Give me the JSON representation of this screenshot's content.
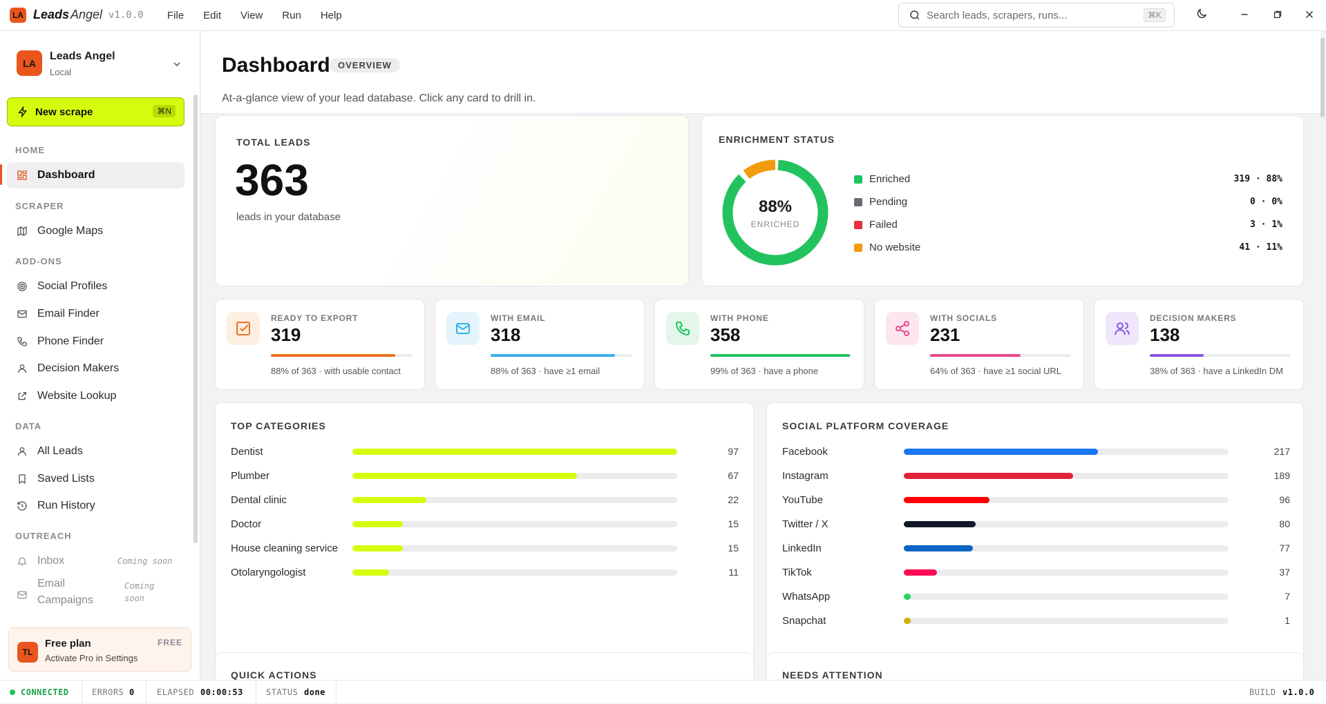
{
  "app": {
    "logo": "LA",
    "brand_bold": "Leads",
    "brand_rest": "Angel",
    "version": "v1.0.0"
  },
  "menu": [
    "File",
    "Edit",
    "View",
    "Run",
    "Help"
  ],
  "search": {
    "placeholder": "Search leads, scrapers, runs...",
    "shortcut": "⌘K"
  },
  "workspace": {
    "initials": "LA",
    "name": "Leads Angel",
    "sub": "Local"
  },
  "new_scrape": {
    "label": "New scrape",
    "shortcut": "⌘N"
  },
  "sidebar": {
    "home": "HOME",
    "scraper": "SCRAPER",
    "addons": "ADD-ONS",
    "data": "DATA",
    "outreach": "OUTREACH",
    "dashboard": "Dashboard",
    "google_maps": "Google Maps",
    "social_profiles": "Social Profiles",
    "email_finder": "Email Finder",
    "phone_finder": "Phone Finder",
    "decision_makers": "Decision Makers",
    "website_lookup": "Website Lookup",
    "all_leads": "All Leads",
    "saved_lists": "Saved Lists",
    "run_history": "Run History",
    "inbox": "Inbox",
    "inbox_soon": "Coming soon",
    "email_campaigns_1": "Email",
    "email_campaigns_2": "Campaigns",
    "ec_soon_1": "Coming",
    "ec_soon_2": "soon"
  },
  "plan": {
    "initials": "TL",
    "name": "Free plan",
    "sub": "Activate Pro in Settings",
    "badge": "FREE"
  },
  "header": {
    "title": "Dashboard",
    "badge": "OVERVIEW",
    "subtitle": "At-a-glance view of your lead database. Click any card to drill in."
  },
  "total": {
    "label": "TOTAL LEADS",
    "value": "363",
    "sub": "leads in your database"
  },
  "enrichment": {
    "label": "ENRICHMENT STATUS",
    "center": "88%",
    "center_sub": "ENRICHED",
    "items": [
      {
        "name": "Enriched",
        "value": "319 · 88%",
        "count": 319,
        "color": "#22c35e"
      },
      {
        "name": "Pending",
        "value": "0 · 0%",
        "count": 0,
        "color": "#6b6b74"
      },
      {
        "name": "Failed",
        "value": "3 · 1%",
        "count": 3,
        "color": "#e53040"
      },
      {
        "name": "No website",
        "value": "41 · 11%",
        "count": 41,
        "color": "#f29b0c"
      }
    ]
  },
  "stats": [
    {
      "label": "READY TO EXPORT",
      "value": "319",
      "sub": "88% of 363 · with usable contact",
      "pct": 0.88,
      "color": "#e8731d",
      "tint": "#fdeee2",
      "icon": "check-square-icon"
    },
    {
      "label": "WITH EMAIL",
      "value": "318",
      "sub": "88% of 363 · have ≥1 email",
      "pct": 0.88,
      "color": "#3ab0ea",
      "tint": "#e3f4fc",
      "icon": "mail-icon"
    },
    {
      "label": "WITH PHONE",
      "value": "358",
      "sub": "99% of 363 · have a phone",
      "pct": 0.99,
      "color": "#22c35e",
      "tint": "#e2f7ea",
      "icon": "phone-icon"
    },
    {
      "label": "WITH SOCIALS",
      "value": "231",
      "sub": "64% of 363 · have ≥1 social URL",
      "pct": 0.64,
      "color": "#e84a8a",
      "tint": "#fce6ef",
      "icon": "share-icon"
    },
    {
      "label": "DECISION MAKERS",
      "value": "138",
      "sub": "38% of 363 · have a LinkedIn DM",
      "pct": 0.38,
      "color": "#8a55e6",
      "tint": "#efe6fc",
      "icon": "users-icon"
    }
  ],
  "categories": {
    "label": "TOP CATEGORIES",
    "max": 97,
    "items": [
      {
        "name": "Dentist",
        "value": 97
      },
      {
        "name": "Plumber",
        "value": 67
      },
      {
        "name": "Dental clinic",
        "value": 22
      },
      {
        "name": "Doctor",
        "value": 15
      },
      {
        "name": "House cleaning service",
        "value": 15
      },
      {
        "name": "Otolaryngologist",
        "value": 11
      }
    ]
  },
  "social": {
    "label": "SOCIAL PLATFORM COVERAGE",
    "max": 363,
    "items": [
      {
        "name": "Facebook",
        "value": 217,
        "color": "#1877f2"
      },
      {
        "name": "Instagram",
        "value": 189,
        "color": "#e1243c"
      },
      {
        "name": "YouTube",
        "value": 96,
        "color": "#ff0000"
      },
      {
        "name": "Twitter / X",
        "value": 80,
        "color": "#111827"
      },
      {
        "name": "LinkedIn",
        "value": 77,
        "color": "#0a66c2"
      },
      {
        "name": "TikTok",
        "value": 37,
        "color": "#ff0a54"
      },
      {
        "name": "WhatsApp",
        "value": 7,
        "color": "#25d366"
      },
      {
        "name": "Snapchat",
        "value": 1,
        "color": "#d4b000"
      }
    ]
  },
  "quick_actions": "QUICK ACTIONS",
  "needs_attention": "NEEDS ATTENTION",
  "status": {
    "connected": "CONNECTED",
    "errors_label": "ERRORS",
    "errors": "0",
    "elapsed_label": "ELAPSED",
    "elapsed": "00:00:53",
    "status_label": "STATUS",
    "status": "done",
    "build_label": "BUILD",
    "build": "v1.0.0"
  },
  "colors": {
    "accent": "#e8561d",
    "lime": "#d4fc0f",
    "category_bar": "#d4fc0f"
  }
}
